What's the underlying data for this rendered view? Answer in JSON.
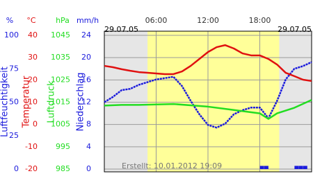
{
  "chart_data": {
    "type": "line",
    "date_left": "29.07.05",
    "date_right": "29.07.05",
    "created": "Erstellt: 10.01.2012 19:09",
    "xlim": [
      0,
      24
    ],
    "xticks": [
      {
        "value": 6,
        "label": "06:00"
      },
      {
        "value": 12,
        "label": "12:00"
      },
      {
        "value": 18,
        "label": "18:00"
      }
    ],
    "daylight": [
      5,
      20.25
    ],
    "grid": true,
    "series": [
      {
        "name": "Luftfeuchtigkeit",
        "unit": "%",
        "color": "#1a1adc",
        "ylim": [
          0,
          100
        ],
        "yticks": [
          0,
          25,
          50,
          75,
          100
        ],
        "x": [
          0,
          1,
          2,
          3,
          4,
          5,
          6,
          7,
          8,
          9,
          10,
          11,
          12,
          13,
          14,
          15,
          16,
          17,
          18,
          19,
          20,
          21,
          22,
          23,
          24
        ],
        "values": [
          50,
          54,
          59,
          60,
          63,
          65,
          67,
          68,
          69,
          62,
          51,
          41,
          33,
          31,
          34,
          41,
          44,
          46,
          46,
          38,
          51,
          67,
          75,
          77,
          80
        ]
      },
      {
        "name": "Temperatur",
        "unit": "°C",
        "color": "#e01010",
        "ylim": [
          -20,
          40
        ],
        "yticks": [
          -20,
          -10,
          0,
          10,
          20,
          30,
          40
        ],
        "x": [
          0,
          1,
          2,
          3,
          4,
          5,
          6,
          7,
          8,
          9,
          10,
          11,
          12,
          13,
          14,
          15,
          16,
          17,
          18,
          19,
          20,
          21,
          22,
          23,
          24
        ],
        "values": [
          26.3,
          25.7,
          24.8,
          24.1,
          23.5,
          23.2,
          22.9,
          22.6,
          22.6,
          23.8,
          26.3,
          29.4,
          32.5,
          34.7,
          35.6,
          34.1,
          31.9,
          31,
          31,
          29.4,
          26.9,
          23.2,
          21.7,
          20.1,
          19.5
        ]
      },
      {
        "name": "Luftdruck",
        "unit": "hPa",
        "color": "#22dd22",
        "ylim": [
          985,
          1045
        ],
        "yticks": [
          985,
          995,
          1005,
          1015,
          1025,
          1035,
          1045
        ],
        "x": [
          0,
          2,
          4,
          6,
          8,
          10,
          12,
          14,
          16,
          18,
          19,
          20,
          22,
          24
        ],
        "values": [
          1013.5,
          1013.8,
          1013.8,
          1014,
          1014.2,
          1013.6,
          1013,
          1012,
          1011,
          1010,
          1007.5,
          1010,
          1012.5,
          1016
        ]
      },
      {
        "name": "Niederschlag",
        "unit": "mm/h",
        "color": "#1a1adc",
        "ylim": [
          0,
          24
        ],
        "yticks": [
          0,
          4,
          8,
          12,
          16,
          20,
          24
        ],
        "bars": true,
        "x": [
          18.5,
          19,
          22.5,
          23,
          23.5
        ],
        "values": [
          0.2,
          0.2,
          0.2,
          0.2,
          0.2
        ]
      }
    ]
  }
}
